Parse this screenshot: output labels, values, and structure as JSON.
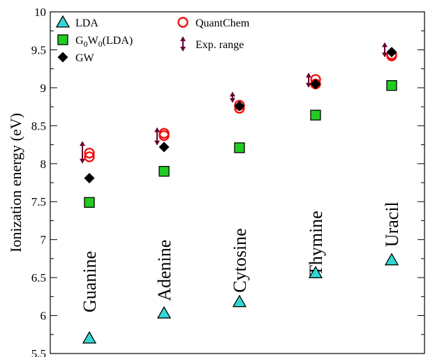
{
  "chart_data": {
    "type": "scatter",
    "xlabel": "",
    "ylabel": "Ionization energy (eV)",
    "ylim": [
      5.5,
      10
    ],
    "yticks": [
      "5.5",
      "6",
      "6.5",
      "7",
      "7.5",
      "8",
      "8.5",
      "9",
      "9.5",
      "10"
    ],
    "grid": false,
    "legend_position": "top-left",
    "categories": [
      "Guanine",
      "Adenine",
      "Cytosine",
      "Thymine",
      "Uracil"
    ],
    "series": [
      {
        "name": "LDA",
        "marker": "triangle",
        "color": "#33d6d6",
        "values": [
          5.7,
          6.03,
          6.18,
          6.56,
          6.73
        ]
      },
      {
        "name": "G0W0(LDA)",
        "marker": "square",
        "color": "#22cc22",
        "values": [
          7.49,
          7.9,
          8.21,
          8.64,
          9.03
        ]
      },
      {
        "name": "GW",
        "marker": "diamond",
        "color": "#000000",
        "values": [
          7.81,
          8.22,
          8.76,
          9.05,
          9.47
        ]
      },
      {
        "name": "QuantChem",
        "marker": "circle-open",
        "color": "#ee1111",
        "values": [
          [
            8.09,
            8.14
          ],
          [
            8.37,
            8.4
          ],
          [
            8.73,
            8.77
          ],
          [
            9.05,
            9.11
          ],
          [
            9.42,
            9.44
          ]
        ]
      },
      {
        "name": "Exp. range",
        "marker": "double-arrow",
        "color": "#660033",
        "ranges": [
          [
            8.0,
            8.3
          ],
          [
            8.24,
            8.48
          ],
          [
            8.8,
            8.95
          ],
          [
            9.0,
            9.2
          ],
          [
            9.4,
            9.6
          ]
        ]
      }
    ]
  }
}
